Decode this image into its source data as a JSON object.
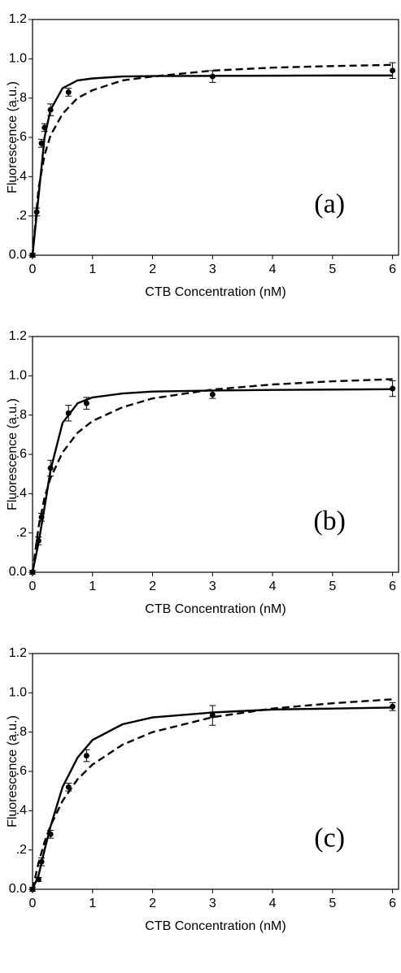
{
  "chart_data": [
    {
      "type": "scatter",
      "annotation": "(a)",
      "xlabel": "CTB Concentration (nM)",
      "ylabel": "Fluorescence (a.u.)",
      "xlim": [
        0,
        6.1
      ],
      "ylim": [
        0,
        1.2
      ],
      "xticks": [
        0,
        1,
        2,
        3,
        4,
        5,
        6
      ],
      "yticks": [
        {
          "value": 0,
          "label": "0.0"
        },
        {
          "value": 0.2,
          "label": ".2"
        },
        {
          "value": 0.4,
          "label": ".4"
        },
        {
          "value": 0.6,
          "label": ".6"
        },
        {
          "value": 0.8,
          "label": ".8"
        },
        {
          "value": 1.0,
          "label": "1.0"
        },
        1.2
      ],
      "color": "#000000",
      "x": [
        0,
        0.07,
        0.15,
        0.2,
        0.3,
        0.6,
        3,
        6
      ],
      "values": [
        0,
        0.22,
        0.57,
        0.65,
        0.74,
        0.83,
        0.91,
        0.94
      ],
      "errors": [
        0.01,
        0.02,
        0.02,
        0.02,
        0.03,
        0.02,
        0.03,
        0.04
      ],
      "curves": [
        {
          "style": "solid",
          "x": [
            0,
            0.1,
            0.2,
            0.3,
            0.5,
            0.75,
            1,
            1.5,
            2,
            3,
            4,
            5,
            6
          ],
          "values": [
            0,
            0.3,
            0.6,
            0.74,
            0.85,
            0.89,
            0.9,
            0.91,
            0.912,
            0.913,
            0.914,
            0.915,
            0.915
          ]
        },
        {
          "style": "dashed",
          "x": [
            0,
            0.1,
            0.2,
            0.3,
            0.5,
            0.75,
            1,
            1.5,
            2,
            3,
            4,
            5,
            6
          ],
          "values": [
            0,
            0.34,
            0.51,
            0.61,
            0.72,
            0.8,
            0.84,
            0.89,
            0.91,
            0.94,
            0.955,
            0.963,
            0.969
          ]
        }
      ]
    },
    {
      "type": "scatter",
      "annotation": "(b)",
      "xlabel": "CTB Concentration (nM)",
      "ylabel": "Fluorescence (a.u.)",
      "xlim": [
        0,
        6.1
      ],
      "ylim": [
        0,
        1.2
      ],
      "xticks": [
        0,
        1,
        2,
        3,
        4,
        5,
        6
      ],
      "yticks": [
        {
          "value": 0,
          "label": "0.0"
        },
        {
          "value": 0.2,
          "label": ".2"
        },
        {
          "value": 0.4,
          "label": ".4"
        },
        {
          "value": 0.6,
          "label": ".6"
        },
        {
          "value": 0.8,
          "label": ".8"
        },
        {
          "value": 1.0,
          "label": "1.0"
        },
        1.2
      ],
      "color": "#000000",
      "x": [
        0,
        0.1,
        0.15,
        0.3,
        0.6,
        0.9,
        3,
        6
      ],
      "values": [
        0,
        0.16,
        0.28,
        0.53,
        0.81,
        0.86,
        0.905,
        0.935
      ],
      "errors": [
        0.01,
        0.02,
        0.02,
        0.04,
        0.04,
        0.03,
        0.02,
        0.04
      ],
      "curves": [
        {
          "style": "solid",
          "x": [
            0,
            0.1,
            0.2,
            0.3,
            0.5,
            0.75,
            1,
            1.5,
            2,
            3,
            4,
            5,
            6
          ],
          "values": [
            0,
            0.15,
            0.33,
            0.52,
            0.76,
            0.86,
            0.89,
            0.91,
            0.92,
            0.925,
            0.928,
            0.93,
            0.932
          ]
        },
        {
          "style": "dashed",
          "x": [
            0,
            0.1,
            0.2,
            0.3,
            0.5,
            0.75,
            1,
            1.5,
            2,
            3,
            4,
            5,
            6
          ],
          "values": [
            0,
            0.23,
            0.38,
            0.48,
            0.61,
            0.71,
            0.77,
            0.84,
            0.885,
            0.93,
            0.956,
            0.972,
            0.983
          ]
        }
      ]
    },
    {
      "type": "scatter",
      "annotation": "(c)",
      "xlabel": "CTB Concentration (nM)",
      "ylabel": "Fluorescence (a.u.)",
      "xlim": [
        0,
        6.1
      ],
      "ylim": [
        0,
        1.2
      ],
      "xticks": [
        0,
        1,
        2,
        3,
        4,
        5,
        6
      ],
      "yticks": [
        {
          "value": 0,
          "label": "0.0"
        },
        {
          "value": 0.2,
          "label": ".2"
        },
        {
          "value": 0.4,
          "label": ".4"
        },
        {
          "value": 0.6,
          "label": ".6"
        },
        {
          "value": 0.8,
          "label": ".8"
        },
        {
          "value": 1.0,
          "label": "1.0"
        },
        1.2
      ],
      "color": "#000000",
      "x": [
        0,
        0.1,
        0.15,
        0.3,
        0.6,
        0.9,
        3,
        6
      ],
      "values": [
        0,
        0.05,
        0.14,
        0.28,
        0.52,
        0.68,
        0.885,
        0.93
      ],
      "errors": [
        0.01,
        0.01,
        0.02,
        0.02,
        0.02,
        0.03,
        0.05,
        0.02
      ],
      "curves": [
        {
          "style": "solid",
          "x": [
            0,
            0.1,
            0.2,
            0.3,
            0.5,
            0.75,
            1,
            1.5,
            2,
            3,
            4,
            5,
            6
          ],
          "values": [
            0,
            0.07,
            0.2,
            0.32,
            0.52,
            0.67,
            0.76,
            0.84,
            0.875,
            0.9,
            0.915,
            0.92,
            0.925
          ]
        },
        {
          "style": "dashed",
          "x": [
            0,
            0.1,
            0.2,
            0.3,
            0.5,
            0.75,
            1,
            1.5,
            2,
            3,
            4,
            5,
            6
          ],
          "values": [
            0,
            0.135,
            0.24,
            0.324,
            0.45,
            0.56,
            0.635,
            0.736,
            0.8,
            0.876,
            0.92,
            0.947,
            0.967
          ]
        }
      ]
    }
  ]
}
